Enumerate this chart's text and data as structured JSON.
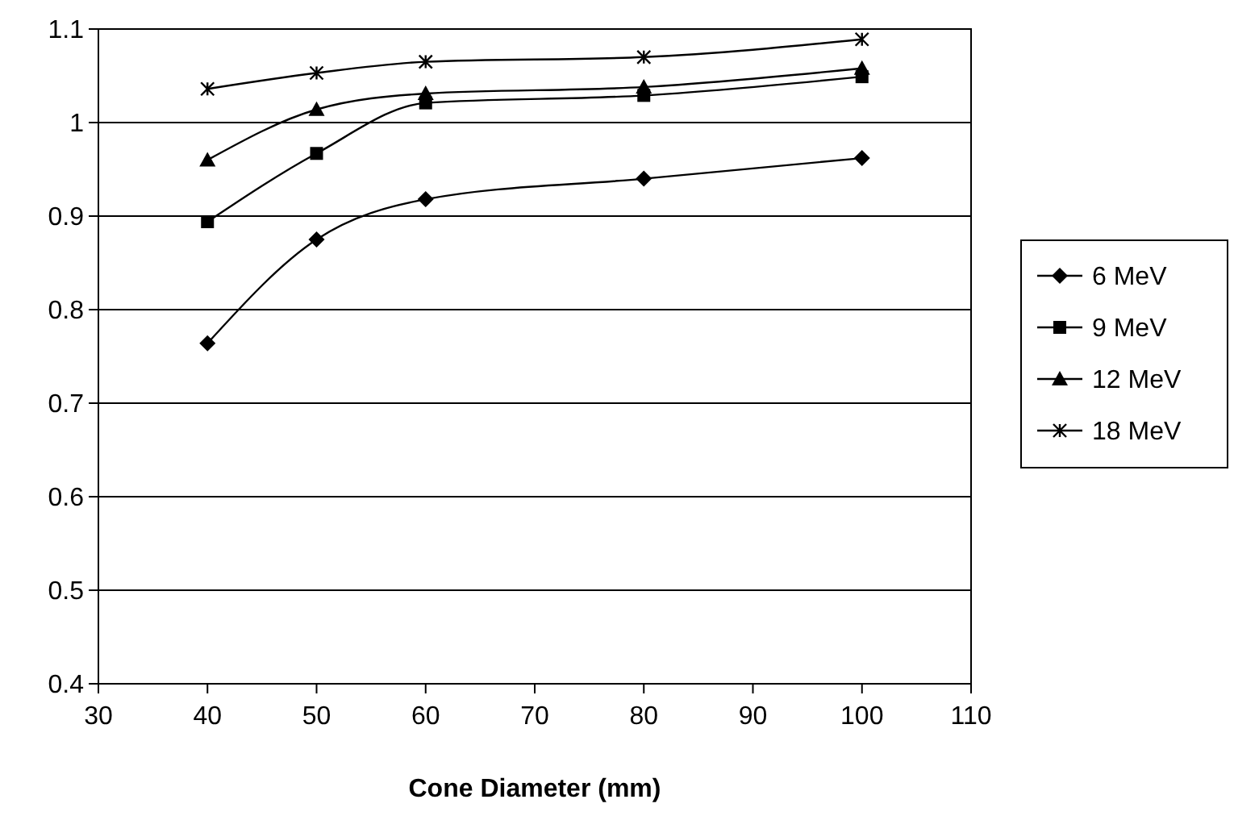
{
  "chart_data": {
    "type": "line",
    "xlabel": "Cone Diameter (mm)",
    "x": [
      40,
      50,
      60,
      80,
      100
    ],
    "series": [
      {
        "name": "6 MeV",
        "color": "#000000",
        "marker": "diamond",
        "values": [
          0.764,
          0.875,
          0.918,
          0.94,
          0.962
        ]
      },
      {
        "name": "9 MeV",
        "color": "#000000",
        "marker": "square",
        "values": [
          0.894,
          0.967,
          1.021,
          1.029,
          1.049
        ]
      },
      {
        "name": "12 MeV",
        "color": "#000000",
        "marker": "triangle",
        "values": [
          0.96,
          1.014,
          1.031,
          1.038,
          1.058
        ]
      },
      {
        "name": "18 MeV",
        "color": "#000000",
        "marker": "cross",
        "values": [
          1.036,
          1.053,
          1.065,
          1.07,
          1.089
        ]
      }
    ],
    "xlim": [
      30,
      110
    ],
    "xticks": [
      30,
      40,
      50,
      60,
      70,
      80,
      90,
      100,
      110
    ],
    "ylim": [
      0.4,
      1.1
    ],
    "yticks": [
      {
        "value": 0.4,
        "label": "0.4"
      },
      {
        "value": 0.5,
        "label": "0.5"
      },
      {
        "value": 0.6,
        "label": "0.6"
      },
      {
        "value": 0.7,
        "label": "0.7"
      },
      {
        "value": 0.8,
        "label": "0.8"
      },
      {
        "value": 0.9,
        "label": "0.9"
      },
      {
        "value": 1,
        "label": "1"
      },
      {
        "value": 1.1,
        "label": "1.1"
      }
    ],
    "grid": "y",
    "legend": "right",
    "line_style": "solid"
  }
}
